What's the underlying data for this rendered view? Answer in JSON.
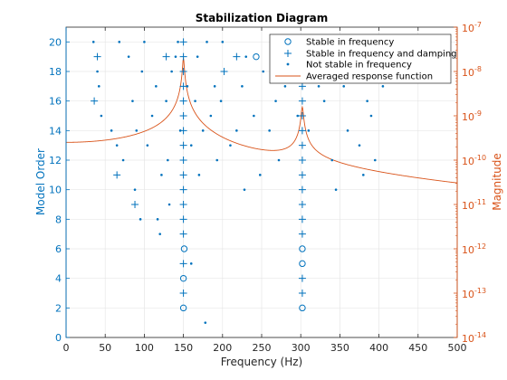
{
  "chart_data": {
    "type": "scatter",
    "title": "Stabilization Diagram",
    "xlabel": "Frequency (Hz)",
    "ylabel_left": "Model Order",
    "ylabel_right": "Magnitude",
    "xlim": [
      0,
      500
    ],
    "ylim_left": [
      0,
      21
    ],
    "ylim_right_log10": [
      -14,
      -7
    ],
    "y_scale_right": "log",
    "grid": true,
    "legend_position": "top-right",
    "colors": {
      "markers": "#0072bd",
      "response": "#d95319",
      "grid": "#e6e6e6"
    },
    "x_ticks": [
      "0",
      "50",
      "100",
      "150",
      "200",
      "250",
      "300",
      "350",
      "400",
      "450",
      "500"
    ],
    "y_ticks_left": [
      "0",
      "2",
      "4",
      "6",
      "8",
      "10",
      "12",
      "14",
      "16",
      "18",
      "20"
    ],
    "y_ticks_right": [
      {
        "base": "10",
        "exp": "-14"
      },
      {
        "base": "10",
        "exp": "-13"
      },
      {
        "base": "10",
        "exp": "-12"
      },
      {
        "base": "10",
        "exp": "-11"
      },
      {
        "base": "10",
        "exp": "-10"
      },
      {
        "base": "10",
        "exp": "-9"
      },
      {
        "base": "10",
        "exp": "-8"
      },
      {
        "base": "10",
        "exp": "-7"
      }
    ],
    "series": [
      {
        "name": "Stable in frequency",
        "marker": "circle",
        "points": [
          [
            150,
            2
          ],
          [
            150,
            4
          ],
          [
            151,
            6
          ],
          [
            302,
            2
          ],
          [
            302,
            5
          ],
          [
            302,
            6
          ],
          [
            243,
            19
          ]
        ]
      },
      {
        "name": "Stable in frequency and damping",
        "marker": "plus",
        "points": [
          [
            150,
            3
          ],
          [
            150,
            5
          ],
          [
            150,
            7
          ],
          [
            150,
            8
          ],
          [
            150,
            9
          ],
          [
            150,
            10
          ],
          [
            150,
            11
          ],
          [
            150,
            12
          ],
          [
            150,
            13
          ],
          [
            150,
            14
          ],
          [
            150,
            15
          ],
          [
            150,
            16
          ],
          [
            150,
            17
          ],
          [
            150,
            18
          ],
          [
            150,
            19
          ],
          [
            150,
            20
          ],
          [
            302,
            3
          ],
          [
            302,
            4
          ],
          [
            302,
            7
          ],
          [
            302,
            8
          ],
          [
            302,
            9
          ],
          [
            302,
            10
          ],
          [
            302,
            11
          ],
          [
            302,
            12
          ],
          [
            302,
            13
          ],
          [
            302,
            14
          ],
          [
            302,
            15
          ],
          [
            302,
            16
          ],
          [
            302,
            17
          ],
          [
            302,
            18
          ],
          [
            302,
            19
          ],
          [
            302,
            20
          ],
          [
            36,
            16
          ],
          [
            40,
            19
          ],
          [
            65,
            11
          ],
          [
            88,
            9
          ],
          [
            128,
            19
          ],
          [
            202,
            18
          ],
          [
            218,
            19
          ]
        ]
      },
      {
        "name": "Not stable in frequency",
        "marker": "dot",
        "points": [
          [
            35,
            20
          ],
          [
            40,
            18
          ],
          [
            42,
            17
          ],
          [
            45,
            15
          ],
          [
            58,
            14
          ],
          [
            65,
            13
          ],
          [
            68,
            20
          ],
          [
            73,
            12
          ],
          [
            80,
            19
          ],
          [
            85,
            16
          ],
          [
            88,
            10
          ],
          [
            90,
            14
          ],
          [
            95,
            8
          ],
          [
            97,
            18
          ],
          [
            100,
            20
          ],
          [
            104,
            13
          ],
          [
            110,
            15
          ],
          [
            115,
            17
          ],
          [
            117,
            8
          ],
          [
            120,
            7
          ],
          [
            122,
            11
          ],
          [
            128,
            16
          ],
          [
            130,
            12
          ],
          [
            132,
            9
          ],
          [
            135,
            18
          ],
          [
            140,
            19
          ],
          [
            143,
            20
          ],
          [
            146,
            14
          ],
          [
            155,
            17
          ],
          [
            160,
            13
          ],
          [
            160,
            5
          ],
          [
            165,
            16
          ],
          [
            168,
            19
          ],
          [
            170,
            11
          ],
          [
            175,
            14
          ],
          [
            178,
            1
          ],
          [
            180,
            20
          ],
          [
            185,
            15
          ],
          [
            190,
            17
          ],
          [
            193,
            12
          ],
          [
            198,
            16
          ],
          [
            200,
            20
          ],
          [
            210,
            13
          ],
          [
            218,
            14
          ],
          [
            225,
            17
          ],
          [
            228,
            10
          ],
          [
            230,
            19
          ],
          [
            240,
            15
          ],
          [
            248,
            11
          ],
          [
            252,
            18
          ],
          [
            260,
            14
          ],
          [
            262,
            20
          ],
          [
            268,
            16
          ],
          [
            272,
            12
          ],
          [
            280,
            17
          ],
          [
            290,
            19
          ],
          [
            296,
            15
          ],
          [
            305,
            18
          ],
          [
            310,
            14
          ],
          [
            318,
            20
          ],
          [
            323,
            17
          ],
          [
            330,
            16
          ],
          [
            340,
            12
          ],
          [
            345,
            10
          ],
          [
            350,
            20
          ],
          [
            355,
            17
          ],
          [
            360,
            14
          ],
          [
            365,
            19
          ],
          [
            370,
            18
          ],
          [
            375,
            13
          ],
          [
            380,
            11
          ],
          [
            385,
            16
          ],
          [
            390,
            15
          ],
          [
            395,
            12
          ],
          [
            400,
            19
          ],
          [
            405,
            17
          ],
          [
            410,
            18
          ],
          [
            418,
            20
          ]
        ]
      },
      {
        "name": "Averaged response function",
        "marker": "line",
        "model": {
          "type": "sum-of-resonances",
          "floor": 2.5e-14,
          "modes": [
            {
              "fn_hz": 150,
              "peak": 2e-08,
              "zeta": 0.006
            },
            {
              "fn_hz": 302,
              "peak": 1.5e-09,
              "zeta": 0.004
            }
          ]
        }
      }
    ]
  }
}
